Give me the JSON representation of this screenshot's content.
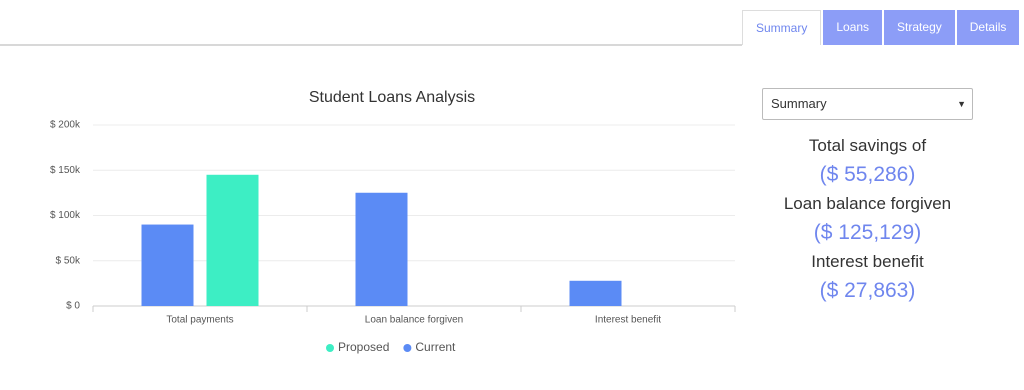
{
  "tabs": [
    {
      "label": "Summary",
      "active": true
    },
    {
      "label": "Loans",
      "active": false
    },
    {
      "label": "Strategy",
      "active": false
    },
    {
      "label": "Details",
      "active": false
    }
  ],
  "panel": {
    "select": "Summary",
    "items": [
      {
        "label": "Total savings of",
        "value": "($ 55,286)"
      },
      {
        "label": "Loan balance forgiven",
        "value": "($ 125,129)"
      },
      {
        "label": "Interest benefit",
        "value": "($ 27,863)"
      }
    ]
  },
  "chart_data": {
    "type": "bar",
    "title": "Student Loans Analysis",
    "categories": [
      "Total payments",
      "Loan balance forgiven",
      "Interest benefit"
    ],
    "series": [
      {
        "name": "Current",
        "color": "#5b8bf5",
        "values": [
          90000,
          125129,
          27863
        ]
      },
      {
        "name": "Proposed",
        "color": "#3deec4",
        "values": [
          145000,
          0,
          0
        ]
      }
    ],
    "legend_order": [
      "Proposed",
      "Current"
    ],
    "ylim": [
      0,
      200000
    ],
    "yticks": [
      {
        "value": 0,
        "label": "$ 0"
      },
      {
        "value": 50000,
        "label": "$ 50k"
      },
      {
        "value": 100000,
        "label": "$ 100k"
      },
      {
        "value": 150000,
        "label": "$ 150k"
      },
      {
        "value": 200000,
        "label": "$ 200k"
      }
    ],
    "grid": true,
    "legend": "bottom"
  }
}
